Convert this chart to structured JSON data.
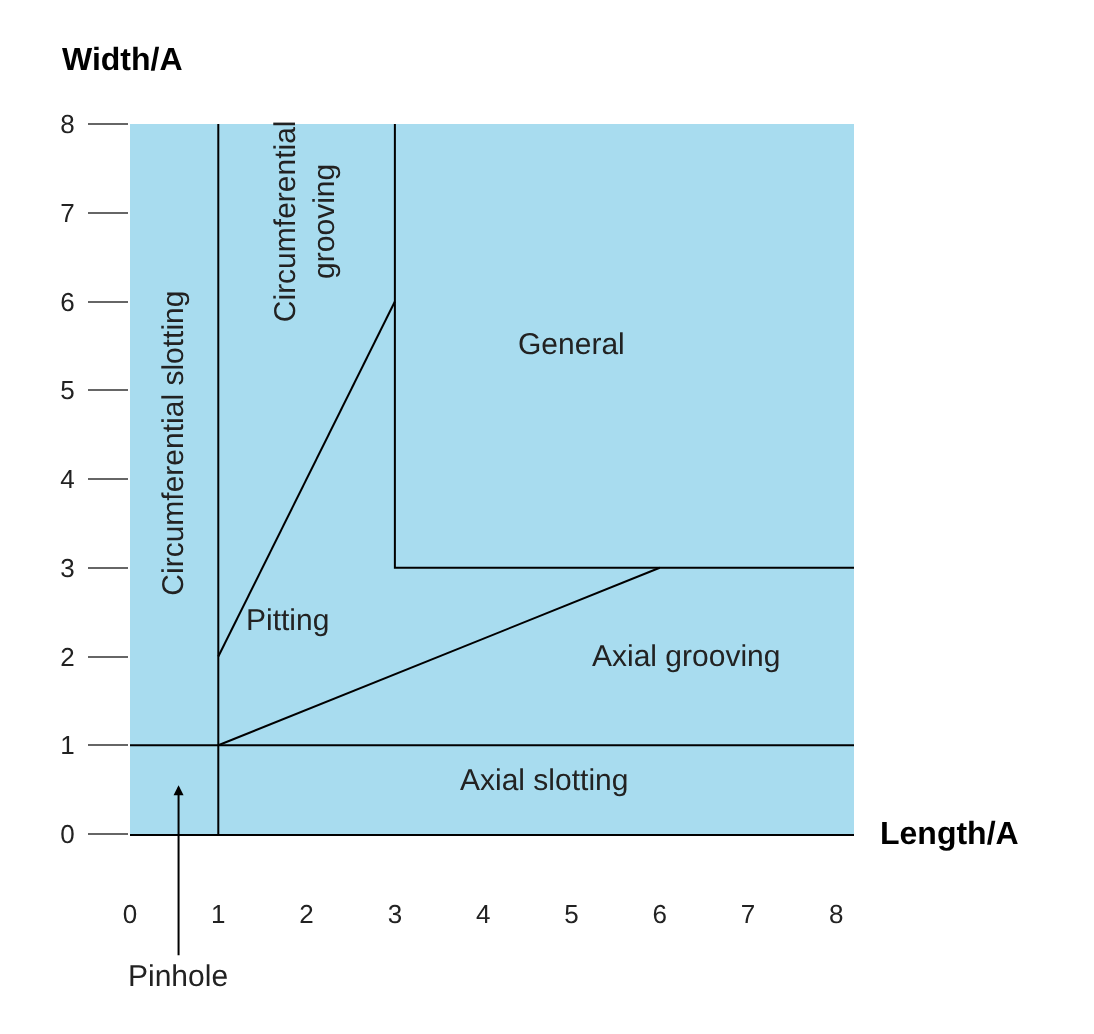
{
  "chart_data": {
    "type": "line",
    "xlabel": "Length/A",
    "ylabel": "Width/A",
    "xlim": [
      0,
      8.2
    ],
    "ylim": [
      0,
      8
    ],
    "xticks": [
      0,
      1,
      2,
      3,
      4,
      5,
      6,
      7,
      8
    ],
    "yticks": [
      0,
      1,
      2,
      3,
      4,
      5,
      6,
      7,
      8
    ],
    "grid": false,
    "marker": "none",
    "line_style": "solid",
    "series": [
      {
        "color": "#000000",
        "x": [
          1,
          3
        ],
        "values": [
          2,
          6
        ]
      },
      {
        "color": "#000000",
        "x": [
          1,
          6
        ],
        "values": [
          1,
          3
        ]
      },
      {
        "color": "#000000",
        "x": [
          3,
          3,
          8.2
        ],
        "values": [
          8,
          3,
          3
        ]
      },
      {
        "color": "#000000",
        "x": [
          1,
          1
        ],
        "values": [
          0,
          8
        ]
      },
      {
        "color": "#000000",
        "x": [
          0,
          8.2
        ],
        "values": [
          1,
          1
        ]
      }
    ],
    "annotations": [
      "Circumferential slotting",
      "Circumferential\ngrooving",
      "General",
      "Pitting",
      "Axial grooving",
      "Axial slotting",
      "Pinhole"
    ]
  }
}
